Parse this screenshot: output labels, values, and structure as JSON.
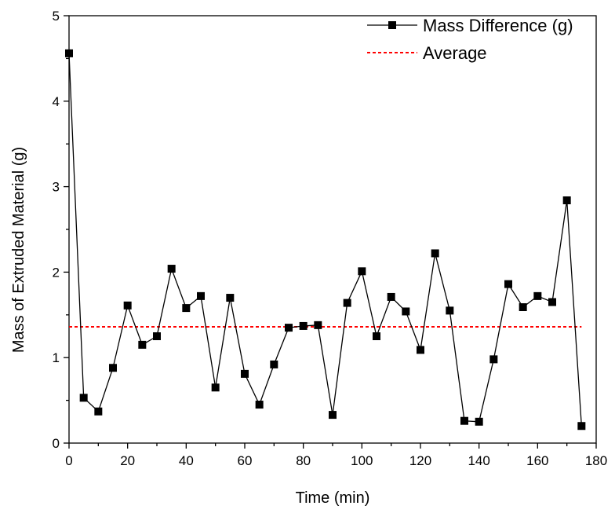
{
  "chart_data": {
    "type": "line",
    "title": "",
    "xlabel": "Time (min)",
    "ylabel": "Mass of Extruded Material (g)",
    "xlim": [
      0,
      180
    ],
    "ylim": [
      0,
      5
    ],
    "xticks": [
      "0",
      "20",
      "40",
      "60",
      "80",
      "100",
      "120",
      "140",
      "160",
      "180"
    ],
    "yticks": [
      "0",
      "1",
      "2",
      "3",
      "4",
      "5"
    ],
    "grid": false,
    "legend_position": "top-right",
    "series": [
      {
        "name": "Mass Difference (g)",
        "color": "#000000",
        "marker": "square",
        "x": [
          0,
          5,
          10,
          15,
          20,
          25,
          30,
          35,
          40,
          45,
          50,
          55,
          60,
          65,
          70,
          75,
          80,
          85,
          90,
          95,
          100,
          105,
          110,
          115,
          120,
          125,
          130,
          135,
          140,
          145,
          150,
          155,
          160,
          165,
          170,
          175
        ],
        "y": [
          4.56,
          0.53,
          0.37,
          0.88,
          1.61,
          1.15,
          1.25,
          2.04,
          1.58,
          1.72,
          0.65,
          1.7,
          0.81,
          0.45,
          0.92,
          1.35,
          1.37,
          1.38,
          0.33,
          1.64,
          2.01,
          1.25,
          1.71,
          1.54,
          1.09,
          2.22,
          1.55,
          0.26,
          0.25,
          0.98,
          1.86,
          1.59,
          1.72,
          1.65,
          2.84,
          0.2
        ]
      },
      {
        "name": "Average",
        "color": "#ff0000",
        "style": "dotted",
        "x": [
          0,
          175
        ],
        "y": [
          1.36,
          1.36
        ]
      }
    ]
  }
}
